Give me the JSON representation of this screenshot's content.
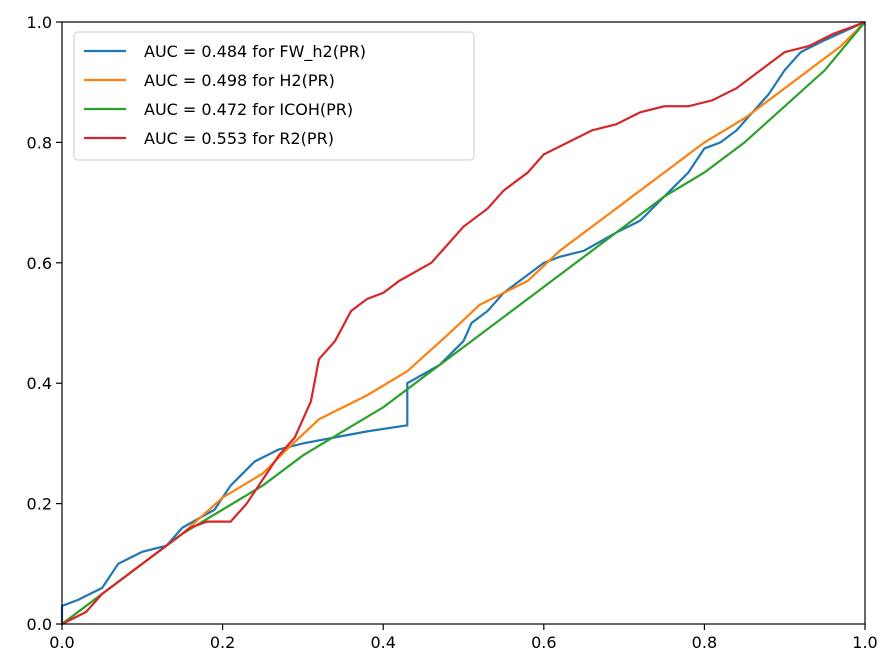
{
  "chart_data": {
    "type": "line",
    "title": "",
    "xlabel": "",
    "ylabel": "",
    "xlim": [
      0.0,
      1.0
    ],
    "ylim": [
      0.0,
      1.0
    ],
    "xticks": [
      "0.0",
      "0.2",
      "0.4",
      "0.6",
      "0.8",
      "1.0"
    ],
    "yticks": [
      "0.0",
      "0.2",
      "0.4",
      "0.6",
      "0.8",
      "1.0"
    ],
    "grid": false,
    "legend_position": "top-left",
    "series": [
      {
        "name": "AUC = 0.484 for FW_h2(PR)",
        "color": "#1f77b4",
        "x": [
          0.0,
          0.0,
          0.02,
          0.05,
          0.07,
          0.1,
          0.13,
          0.15,
          0.19,
          0.21,
          0.24,
          0.27,
          0.3,
          0.34,
          0.38,
          0.43,
          0.43,
          0.47,
          0.5,
          0.51,
          0.53,
          0.55,
          0.58,
          0.6,
          0.62,
          0.65,
          0.69,
          0.72,
          0.75,
          0.78,
          0.8,
          0.82,
          0.84,
          0.86,
          0.88,
          0.9,
          0.92,
          0.95,
          1.0
        ],
        "y": [
          0.0,
          0.03,
          0.04,
          0.06,
          0.1,
          0.12,
          0.13,
          0.16,
          0.19,
          0.23,
          0.27,
          0.29,
          0.3,
          0.31,
          0.32,
          0.33,
          0.4,
          0.43,
          0.47,
          0.5,
          0.52,
          0.55,
          0.58,
          0.6,
          0.61,
          0.62,
          0.65,
          0.67,
          0.71,
          0.75,
          0.79,
          0.8,
          0.82,
          0.85,
          0.88,
          0.92,
          0.95,
          0.97,
          1.0
        ]
      },
      {
        "name": "AUC = 0.498 for H2(PR)",
        "color": "#ff7f0e",
        "x": [
          0.0,
          0.05,
          0.1,
          0.15,
          0.2,
          0.25,
          0.28,
          0.32,
          0.38,
          0.43,
          0.48,
          0.52,
          0.58,
          0.62,
          0.66,
          0.7,
          0.75,
          0.8,
          0.85,
          0.88,
          0.91,
          0.94,
          0.97,
          1.0
        ],
        "y": [
          0.0,
          0.05,
          0.1,
          0.15,
          0.21,
          0.25,
          0.29,
          0.34,
          0.38,
          0.42,
          0.48,
          0.53,
          0.57,
          0.62,
          0.66,
          0.7,
          0.75,
          0.8,
          0.84,
          0.87,
          0.9,
          0.93,
          0.96,
          1.0
        ]
      },
      {
        "name": "AUC = 0.472 for ICOH(PR)",
        "color": "#2ca02c",
        "x": [
          0.0,
          0.05,
          0.1,
          0.15,
          0.2,
          0.25,
          0.3,
          0.35,
          0.4,
          0.45,
          0.5,
          0.55,
          0.6,
          0.65,
          0.7,
          0.75,
          0.8,
          0.85,
          0.9,
          0.95,
          1.0
        ],
        "y": [
          0.0,
          0.05,
          0.1,
          0.15,
          0.19,
          0.23,
          0.28,
          0.32,
          0.36,
          0.41,
          0.46,
          0.51,
          0.56,
          0.61,
          0.66,
          0.71,
          0.75,
          0.8,
          0.86,
          0.92,
          1.0
        ]
      },
      {
        "name": "AUC = 0.553 for R2(PR)",
        "color": "#d62728",
        "x": [
          0.0,
          0.03,
          0.05,
          0.08,
          0.1,
          0.12,
          0.14,
          0.16,
          0.18,
          0.21,
          0.23,
          0.25,
          0.27,
          0.29,
          0.31,
          0.32,
          0.34,
          0.36,
          0.38,
          0.4,
          0.42,
          0.46,
          0.48,
          0.5,
          0.53,
          0.55,
          0.58,
          0.6,
          0.63,
          0.66,
          0.69,
          0.72,
          0.75,
          0.78,
          0.81,
          0.84,
          0.86,
          0.88,
          0.9,
          0.93,
          0.96,
          1.0
        ],
        "y": [
          0.0,
          0.02,
          0.05,
          0.08,
          0.1,
          0.12,
          0.14,
          0.16,
          0.17,
          0.17,
          0.2,
          0.24,
          0.28,
          0.31,
          0.37,
          0.44,
          0.47,
          0.52,
          0.54,
          0.55,
          0.57,
          0.6,
          0.63,
          0.66,
          0.69,
          0.72,
          0.75,
          0.78,
          0.8,
          0.82,
          0.83,
          0.85,
          0.86,
          0.86,
          0.87,
          0.89,
          0.91,
          0.93,
          0.95,
          0.96,
          0.98,
          1.0
        ]
      }
    ]
  }
}
